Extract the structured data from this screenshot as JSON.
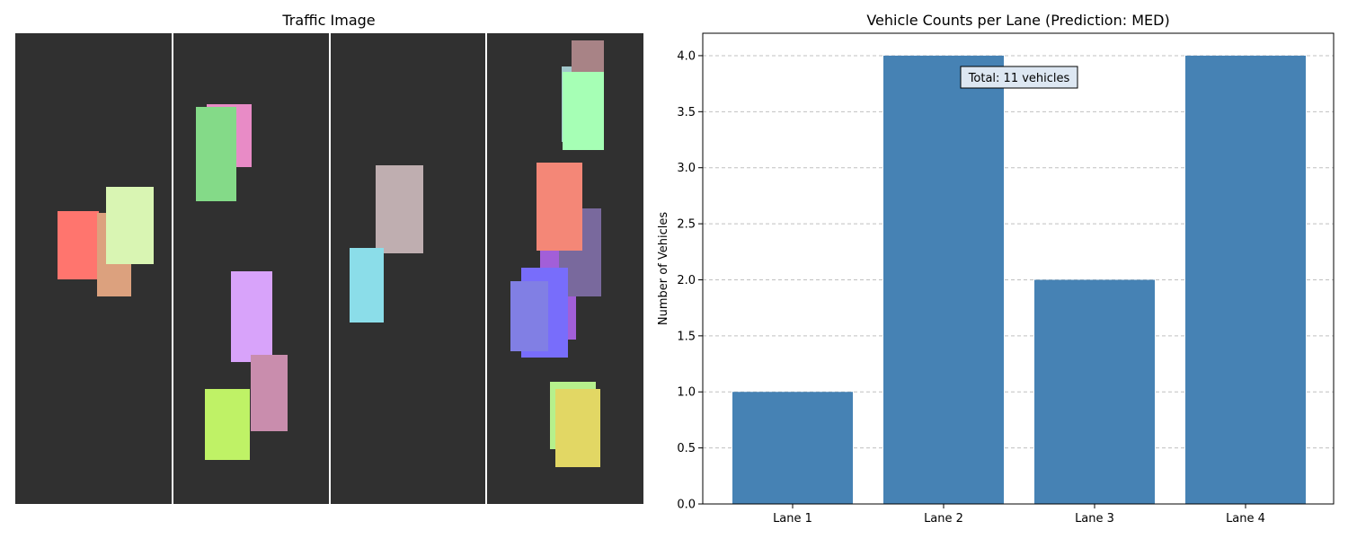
{
  "traffic_panel": {
    "title": "Traffic Image",
    "road_color": "#303030",
    "divider_color": "#ffffff"
  },
  "chart_data": {
    "type": "bar",
    "title": "Vehicle Counts per Lane (Prediction: MED)",
    "categories": [
      "Lane 1",
      "Lane 2",
      "Lane 3",
      "Lane 4"
    ],
    "values": [
      1,
      4,
      2,
      4
    ],
    "xlabel": "",
    "ylabel": "Number of Vehicles",
    "ylim": [
      0,
      4.2
    ],
    "yticks": [
      "0.0",
      "0.5",
      "1.0",
      "1.5",
      "2.0",
      "2.5",
      "3.0",
      "3.5",
      "4.0"
    ],
    "grid": true,
    "bar_color": "#4682b4",
    "annotation": "Total: 11 vehicles"
  }
}
